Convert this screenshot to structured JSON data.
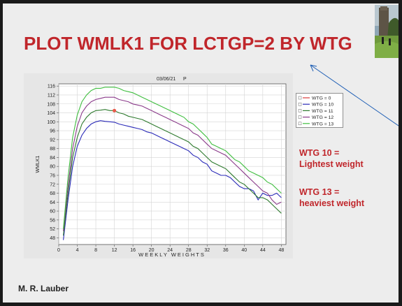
{
  "slide": {
    "title": "PLOT WMLK1 FOR LCTGP=2 BY WTG",
    "notes": [
      {
        "line1": "WTG 10 =",
        "line2": "Lightest weight"
      },
      {
        "line1": "WTG 13 =",
        "line2": "heaviest weight"
      }
    ],
    "author": "M. R. Lauber"
  },
  "chart_data": {
    "type": "line",
    "header_date": "03/06/21",
    "header_code": "P",
    "xlabel": "WEEKLY WEIGHTS",
    "ylabel": "WMLK1",
    "xlim": [
      0,
      49
    ],
    "ylim": [
      45,
      117
    ],
    "xticks": [
      0,
      4,
      8,
      12,
      16,
      20,
      24,
      28,
      32,
      36,
      40,
      44,
      48
    ],
    "yticks": [
      48,
      52,
      56,
      60,
      64,
      68,
      72,
      76,
      80,
      84,
      88,
      92,
      96,
      100,
      104,
      108,
      112,
      116
    ],
    "grid": true,
    "legend_position": "right",
    "series": [
      {
        "name": "WTG = 0",
        "color": "#d9383a",
        "x": [],
        "y": []
      },
      {
        "name": "WTG = 10",
        "color": "#2a2ab8",
        "x": [
          1,
          2,
          3,
          4,
          5,
          6,
          7,
          8,
          9,
          10,
          11,
          12,
          13,
          14,
          15,
          16,
          17,
          18,
          19,
          20,
          21,
          22,
          23,
          24,
          25,
          26,
          27,
          28,
          29,
          30,
          31,
          32,
          33,
          34,
          35,
          36,
          37,
          38,
          39,
          40,
          41,
          42,
          43,
          44,
          45,
          46,
          47,
          48
        ],
        "y": [
          47,
          65,
          80,
          89,
          94,
          97,
          99,
          100,
          100.5,
          100.2,
          100,
          99.8,
          99,
          98.5,
          98,
          97.5,
          97,
          96.5,
          95.5,
          95,
          94,
          93,
          92,
          91,
          90,
          89,
          88,
          87,
          85,
          84,
          82,
          81,
          78,
          77,
          76,
          76,
          75,
          73,
          71,
          70,
          70,
          69,
          65,
          68,
          67,
          67,
          68,
          66
        ]
      },
      {
        "name": "WTG = 11",
        "color": "#2e7a2e",
        "x": [
          1,
          2,
          3,
          4,
          5,
          6,
          7,
          8,
          9,
          10,
          11,
          12,
          13,
          14,
          15,
          16,
          17,
          18,
          19,
          20,
          21,
          22,
          23,
          24,
          25,
          26,
          27,
          28,
          29,
          30,
          31,
          32,
          33,
          34,
          35,
          36,
          37,
          38,
          39,
          40,
          41,
          42,
          43,
          44,
          45,
          46,
          47,
          48
        ],
        "y": [
          49,
          68,
          84,
          93,
          99,
          102,
          104,
          105,
          105.2,
          105.5,
          105,
          105,
          104,
          103.5,
          102.5,
          102,
          101.5,
          101,
          100,
          99,
          98,
          97,
          96,
          95,
          94,
          93,
          92,
          91,
          89,
          88,
          86,
          84,
          82,
          81,
          80,
          79,
          77,
          75,
          73,
          72,
          70,
          68,
          66,
          66,
          65,
          63,
          61,
          59
        ]
      },
      {
        "name": "WTG = 12",
        "color": "#8a3a8a",
        "x": [
          1,
          2,
          3,
          4,
          5,
          6,
          7,
          8,
          9,
          10,
          11,
          12,
          13,
          14,
          15,
          16,
          17,
          18,
          19,
          20,
          21,
          22,
          23,
          24,
          25,
          26,
          27,
          28,
          29,
          30,
          31,
          32,
          33,
          34,
          35,
          36,
          37,
          38,
          39,
          40,
          41,
          42,
          43,
          44,
          45,
          46,
          47,
          48
        ],
        "y": [
          51,
          71,
          88,
          98,
          104,
          107,
          109,
          110,
          110.5,
          111,
          111,
          111,
          110,
          109.5,
          109,
          108,
          107.5,
          107,
          106,
          105,
          104,
          103,
          102,
          101,
          100,
          99,
          98,
          97,
          95,
          94,
          92,
          90,
          88,
          87,
          86,
          85,
          83,
          81,
          79,
          77,
          75,
          73,
          71,
          69,
          68,
          65,
          63,
          64
        ]
      },
      {
        "name": "WTG = 13",
        "color": "#3fbe3f",
        "x": [
          1,
          2,
          3,
          4,
          5,
          6,
          7,
          8,
          9,
          10,
          11,
          12,
          13,
          14,
          15,
          16,
          17,
          18,
          19,
          20,
          21,
          22,
          23,
          24,
          25,
          26,
          27,
          28,
          29,
          30,
          31,
          32,
          33,
          34,
          35,
          36,
          37,
          38,
          39,
          40,
          41,
          42,
          43,
          44,
          45,
          46,
          47,
          48
        ],
        "y": [
          52,
          75,
          93,
          103,
          109,
          112,
          114,
          115,
          115,
          115.5,
          115.5,
          115.5,
          115,
          114,
          113.5,
          113,
          112,
          111,
          110,
          109,
          108,
          107,
          106,
          105,
          104,
          103,
          102,
          100,
          99,
          97,
          95,
          93,
          90,
          89,
          88,
          87,
          85,
          83,
          82,
          80,
          78,
          77,
          76,
          75,
          73,
          72,
          70,
          68
        ]
      }
    ],
    "highlight_point": {
      "series": "WTG = 11",
      "x": 12,
      "y": 105,
      "color": "#e8594a"
    }
  }
}
